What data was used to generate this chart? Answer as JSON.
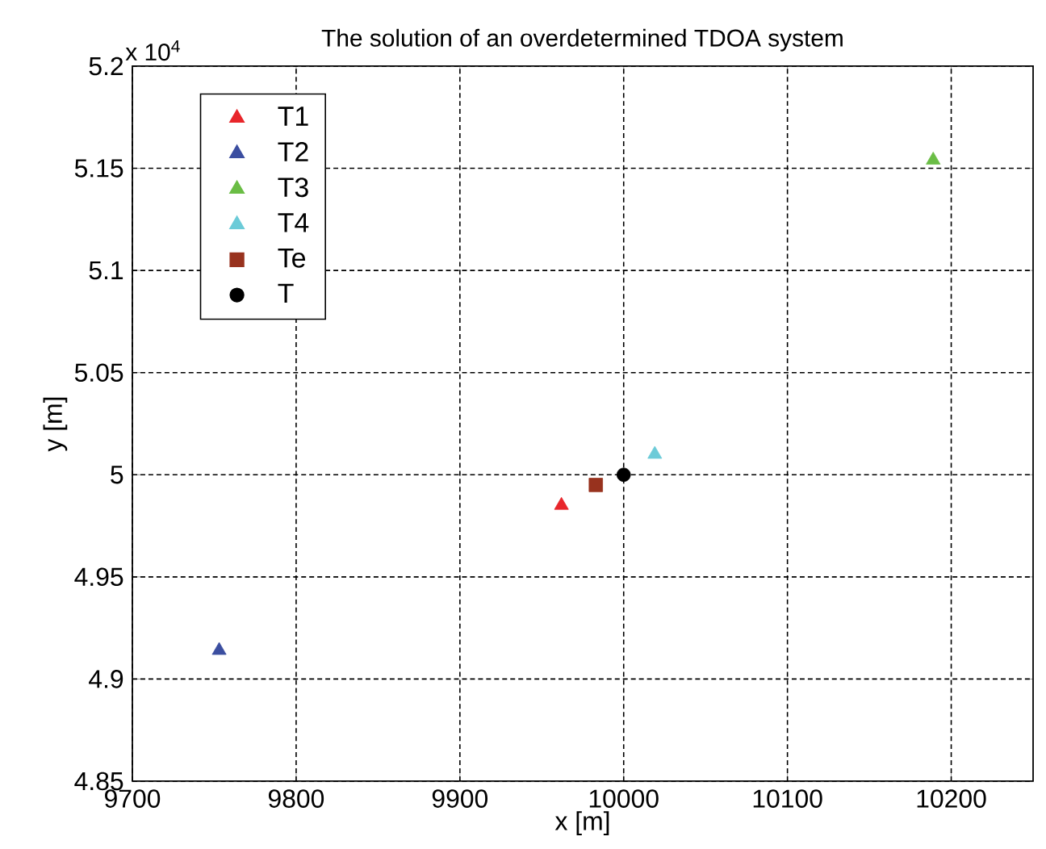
{
  "chart_data": {
    "type": "scatter",
    "title": "The solution of an overdetermined TDOA system",
    "xlabel": "x [m]",
    "ylabel": "y [m]",
    "annotations": [
      "x 10$^{4}$"
    ],
    "series": [
      {
        "name": "T1",
        "color": "#e8262b",
        "marker": "triangle",
        "x": [
          9962
        ],
        "values": [
          4.985
        ]
      },
      {
        "name": "T2",
        "color": "#3b4ea0",
        "marker": "triangle",
        "x": [
          9753
        ],
        "values": [
          4.914
        ]
      },
      {
        "name": "T3",
        "color": "#6abd45",
        "marker": "triangle",
        "x": [
          10189
        ],
        "values": [
          5.154
        ]
      },
      {
        "name": "T4",
        "color": "#6ccbd8",
        "marker": "triangle",
        "x": [
          10019
        ],
        "values": [
          5.01
        ]
      },
      {
        "name": "Te",
        "color": "#98321e",
        "marker": "square",
        "x": [
          9983
        ],
        "values": [
          4.995
        ]
      },
      {
        "name": "T",
        "color": "#000000",
        "marker": "circle",
        "x": [
          10000
        ],
        "values": [
          5.0
        ]
      }
    ],
    "xlim": [
      9700,
      10250
    ],
    "ylim": [
      4.85,
      5.2
    ],
    "xticks": [
      9700,
      9800,
      9900,
      10000,
      10100,
      10200
    ],
    "yticks": [
      4.85,
      4.9,
      4.95,
      5,
      5.05,
      5.1,
      5.15,
      5.2
    ],
    "grid": true,
    "legend": "top left"
  }
}
